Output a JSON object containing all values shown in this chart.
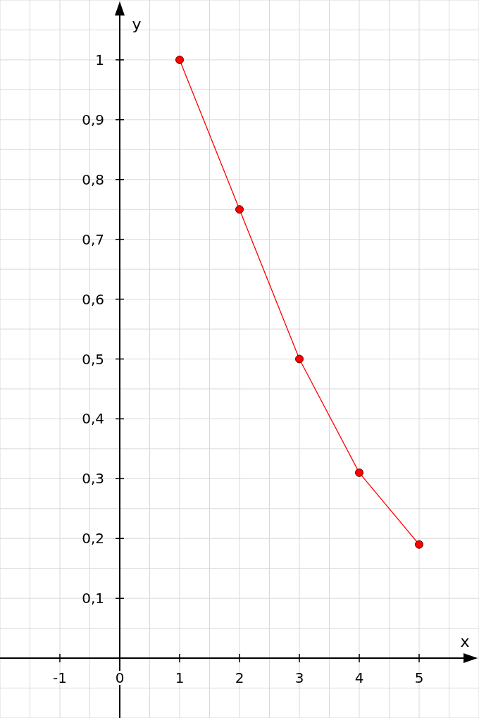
{
  "chart_data": {
    "type": "line",
    "xlabel": "x",
    "ylabel": "y",
    "x": [
      1,
      2,
      3,
      4,
      5
    ],
    "series": [
      {
        "color": "#ff0000",
        "values": [
          1,
          0.75,
          0.5,
          0.31,
          0.19
        ]
      }
    ],
    "xlim": [
      -2,
      6
    ],
    "ylim": [
      -0.1,
      1.1
    ],
    "xticks": [
      -1,
      0,
      1,
      2,
      3,
      4,
      5
    ],
    "yticks": [
      {
        "value": 0.1,
        "label": "0,1"
      },
      {
        "value": 0.2,
        "label": "0,2"
      },
      {
        "value": 0.3,
        "label": "0,3"
      },
      {
        "value": 0.4,
        "label": "0,4"
      },
      {
        "value": 0.5,
        "label": "0,5"
      },
      {
        "value": 0.6,
        "label": "0,6"
      },
      {
        "value": 0.7,
        "label": "0,7"
      },
      {
        "value": 0.8,
        "label": "0,8"
      },
      {
        "value": 0.9,
        "label": "0,9"
      },
      1
    ],
    "grid": true,
    "marker": "circle",
    "line_style": "solid"
  }
}
